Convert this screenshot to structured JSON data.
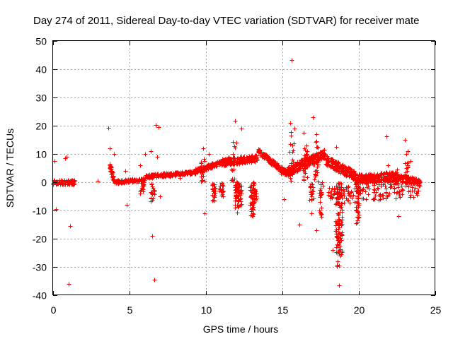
{
  "chart_data": {
    "type": "scatter",
    "title": "Day 274 of 2011, Sidereal Day-to-day VTEC variation (SDTVAR) for receiver mate",
    "xlabel": "GPS time / hours",
    "ylabel": "SDTVAR / TECUs",
    "xlim": [
      0,
      25
    ],
    "ylim": [
      -40,
      50
    ],
    "xticks": [
      "0",
      "5",
      "10",
      "15",
      "20",
      "25"
    ],
    "yticks": [
      "50",
      "40",
      "30",
      "20",
      "10",
      "0",
      "-10",
      "-20",
      "-30",
      "-40"
    ],
    "grid": true,
    "marker": "+",
    "color": "#ff0000",
    "series": [
      {
        "name": "SDTVAR",
        "outliers": [
          {
            "x": 15.6,
            "y": 43.2
          },
          {
            "x": 1.0,
            "y": -36.0
          },
          {
            "x": 18.7,
            "y": -36.5
          },
          {
            "x": 6.6,
            "y": -34.5
          },
          {
            "x": 6.5,
            "y": -19.0
          },
          {
            "x": 1.1,
            "y": -15.5
          },
          {
            "x": 3.6,
            "y": 19.2
          },
          {
            "x": 6.7,
            "y": 20.2
          },
          {
            "x": 6.9,
            "y": 19.5
          },
          {
            "x": 11.9,
            "y": 21.8
          },
          {
            "x": 12.3,
            "y": 19.0
          },
          {
            "x": 17.0,
            "y": 23.0
          },
          {
            "x": 21.8,
            "y": 16.2
          },
          {
            "x": 23.0,
            "y": 15.0
          },
          {
            "x": 23.2,
            "y": 11.0
          },
          {
            "x": 22.6,
            "y": -12.0
          },
          {
            "x": 16.1,
            "y": -15.0
          },
          {
            "x": 9.8,
            "y": 12.0
          },
          {
            "x": 0.1,
            "y": 7.5
          },
          {
            "x": 0.2,
            "y": -9.5
          },
          {
            "x": 0.8,
            "y": 8.5
          },
          {
            "x": 0.9,
            "y": 9.0
          },
          {
            "x": 3.7,
            "y": 12.0
          },
          {
            "x": 4.0,
            "y": 10.0
          },
          {
            "x": 4.7,
            "y": 4.0
          },
          {
            "x": 4.8,
            "y": -8.0
          },
          {
            "x": 6.0,
            "y": 10.0
          },
          {
            "x": 6.4,
            "y": 11.0
          },
          {
            "x": 6.8,
            "y": 9.0
          },
          {
            "x": 5.7,
            "y": 6.0
          },
          {
            "x": 7.0,
            "y": -5.0
          },
          {
            "x": 9.9,
            "y": -11.0
          },
          {
            "x": 10.2,
            "y": 10.0
          },
          {
            "x": 12.0,
            "y": 14.0
          },
          {
            "x": 11.5,
            "y": 9.0
          },
          {
            "x": 15.5,
            "y": 21.0
          },
          {
            "x": 15.8,
            "y": 19.0
          },
          {
            "x": 16.4,
            "y": 17.5
          },
          {
            "x": 17.2,
            "y": 17.0
          },
          {
            "x": 18.5,
            "y": 12.5
          },
          {
            "x": 21.9,
            "y": 6.0
          },
          {
            "x": 22.5,
            "y": 4.5
          },
          {
            "x": 23.4,
            "y": 7.5
          },
          {
            "x": 23.1,
            "y": 10.0
          },
          {
            "x": 14.9,
            "y": 3.0
          },
          {
            "x": 16.9,
            "y": -11.0
          },
          {
            "x": 17.5,
            "y": -11.0
          },
          {
            "x": 17.2,
            "y": -17.0
          },
          {
            "x": 18.3,
            "y": -24.0
          },
          {
            "x": 16.6,
            "y": 11.0
          },
          {
            "x": 15.1,
            "y": -6.0
          },
          {
            "x": 8.3,
            "y": 1.5
          },
          {
            "x": 2.9,
            "y": 0.5
          }
        ]
      }
    ]
  }
}
